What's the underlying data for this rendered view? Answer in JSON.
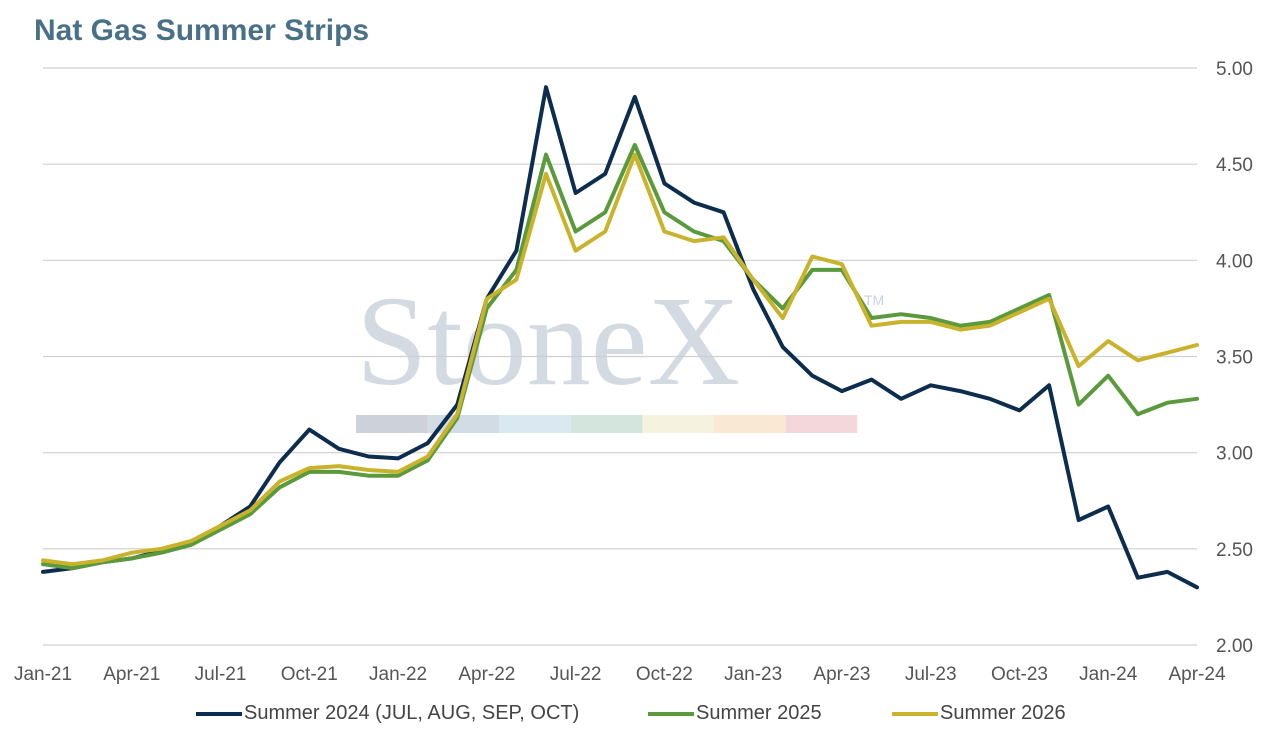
{
  "title": "Nat Gas Summer Strips",
  "watermark": {
    "text": "StoneX",
    "tm": "TM",
    "band_colors": [
      "#c6ccd6",
      "#cdd8e2",
      "#d6e6f1",
      "#cfe2da",
      "#f4f1dc",
      "#f7e5cf",
      "#f2d3d6"
    ]
  },
  "chart_data": {
    "type": "line",
    "title": "Nat Gas Summer Strips",
    "xlabel": "",
    "ylabel": "",
    "x_ticks": [
      "Jan-21",
      "Apr-21",
      "Jul-21",
      "Oct-21",
      "Jan-22",
      "Apr-22",
      "Jul-22",
      "Oct-22",
      "Jan-23",
      "Apr-23",
      "Jul-23",
      "Oct-23",
      "Jan-24",
      "Apr-24"
    ],
    "y_ticks": [
      "2.00",
      "2.50",
      "3.00",
      "3.50",
      "4.00",
      "4.50",
      "5.00"
    ],
    "ylim": [
      2.0,
      5.0
    ],
    "xlim": [
      "2021-01",
      "2024-04"
    ],
    "grid": true,
    "y_axis_side": "right",
    "legend_position": "bottom",
    "x": [
      "2021-01",
      "2021-02",
      "2021-03",
      "2021-04",
      "2021-05",
      "2021-06",
      "2021-07",
      "2021-08",
      "2021-09",
      "2021-10",
      "2021-11",
      "2021-12",
      "2022-01",
      "2022-02",
      "2022-03",
      "2022-04",
      "2022-05",
      "2022-06",
      "2022-07",
      "2022-08",
      "2022-09",
      "2022-10",
      "2022-11",
      "2022-12",
      "2023-01",
      "2023-02",
      "2023-03",
      "2023-04",
      "2023-05",
      "2023-06",
      "2023-07",
      "2023-08",
      "2023-09",
      "2023-10",
      "2023-11",
      "2023-12",
      "2024-01",
      "2024-02",
      "2024-03",
      "2024-04"
    ],
    "series": [
      {
        "name": "Summer 2024 (JUL, AUG, SEP, OCT)",
        "color": "#0d2d4e",
        "values": [
          2.38,
          2.4,
          2.43,
          2.45,
          2.49,
          2.53,
          2.62,
          2.72,
          2.95,
          3.12,
          3.02,
          2.98,
          2.97,
          3.05,
          3.25,
          3.8,
          4.05,
          4.9,
          4.35,
          4.45,
          4.85,
          4.4,
          4.3,
          4.25,
          3.85,
          3.55,
          3.4,
          3.32,
          3.38,
          3.28,
          3.35,
          3.32,
          3.28,
          3.22,
          3.35,
          2.65,
          2.72,
          2.35,
          2.38,
          2.3
        ]
      },
      {
        "name": "Summer 2025",
        "color": "#5a9a3c",
        "values": [
          2.42,
          2.4,
          2.43,
          2.45,
          2.48,
          2.52,
          2.6,
          2.68,
          2.82,
          2.9,
          2.9,
          2.88,
          2.88,
          2.96,
          3.18,
          3.75,
          3.95,
          4.55,
          4.15,
          4.25,
          4.6,
          4.25,
          4.15,
          4.1,
          3.9,
          3.75,
          3.95,
          3.95,
          3.7,
          3.72,
          3.7,
          3.66,
          3.68,
          3.75,
          3.82,
          3.25,
          3.4,
          3.2,
          3.26,
          3.28
        ]
      },
      {
        "name": "Summer 2026",
        "color": "#c9b22c",
        "values": [
          2.44,
          2.42,
          2.44,
          2.48,
          2.5,
          2.54,
          2.62,
          2.7,
          2.85,
          2.92,
          2.93,
          2.91,
          2.9,
          2.98,
          3.2,
          3.8,
          3.9,
          4.45,
          4.05,
          4.15,
          4.55,
          4.15,
          4.1,
          4.12,
          3.9,
          3.7,
          4.02,
          3.98,
          3.66,
          3.68,
          3.68,
          3.64,
          3.66,
          3.73,
          3.8,
          3.45,
          3.58,
          3.48,
          3.52,
          3.56
        ]
      }
    ]
  }
}
